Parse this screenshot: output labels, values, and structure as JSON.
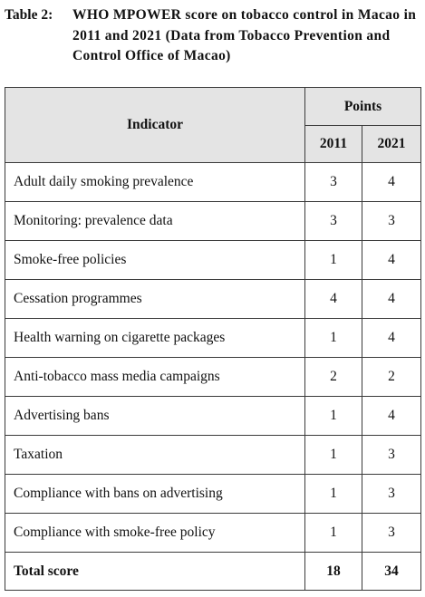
{
  "caption": {
    "label": "Table 2:",
    "text": "WHO MPOWER score on tobacco control in Macao in 2011 and 2021 (Data from Tobacco Prevention and Control Office of Macao)"
  },
  "table": {
    "headers": {
      "indicator": "Indicator",
      "points": "Points",
      "year1": "2011",
      "year2": "2021"
    },
    "rows": [
      {
        "indicator": "Adult daily smoking prevalence",
        "y2011": "3",
        "y2021": "4"
      },
      {
        "indicator": "Monitoring: prevalence data",
        "y2011": "3",
        "y2021": "3"
      },
      {
        "indicator": "Smoke-free policies",
        "y2011": "1",
        "y2021": "4"
      },
      {
        "indicator": "Cessation programmes",
        "y2011": "4",
        "y2021": "4"
      },
      {
        "indicator": "Health warning on cigarette packages",
        "y2011": "1",
        "y2021": "4"
      },
      {
        "indicator": "Anti-tobacco mass media campaigns",
        "y2011": "2",
        "y2021": "2"
      },
      {
        "indicator": "Advertising bans",
        "y2011": "1",
        "y2021": "4"
      },
      {
        "indicator": "Taxation",
        "y2011": "1",
        "y2021": "3"
      },
      {
        "indicator": "Compliance with bans on advertising",
        "y2011": "1",
        "y2021": "3"
      },
      {
        "indicator": "Compliance with smoke-free policy",
        "y2011": "1",
        "y2021": "3"
      }
    ],
    "total": {
      "label": "Total score",
      "y2011": "18",
      "y2021": "34"
    }
  }
}
